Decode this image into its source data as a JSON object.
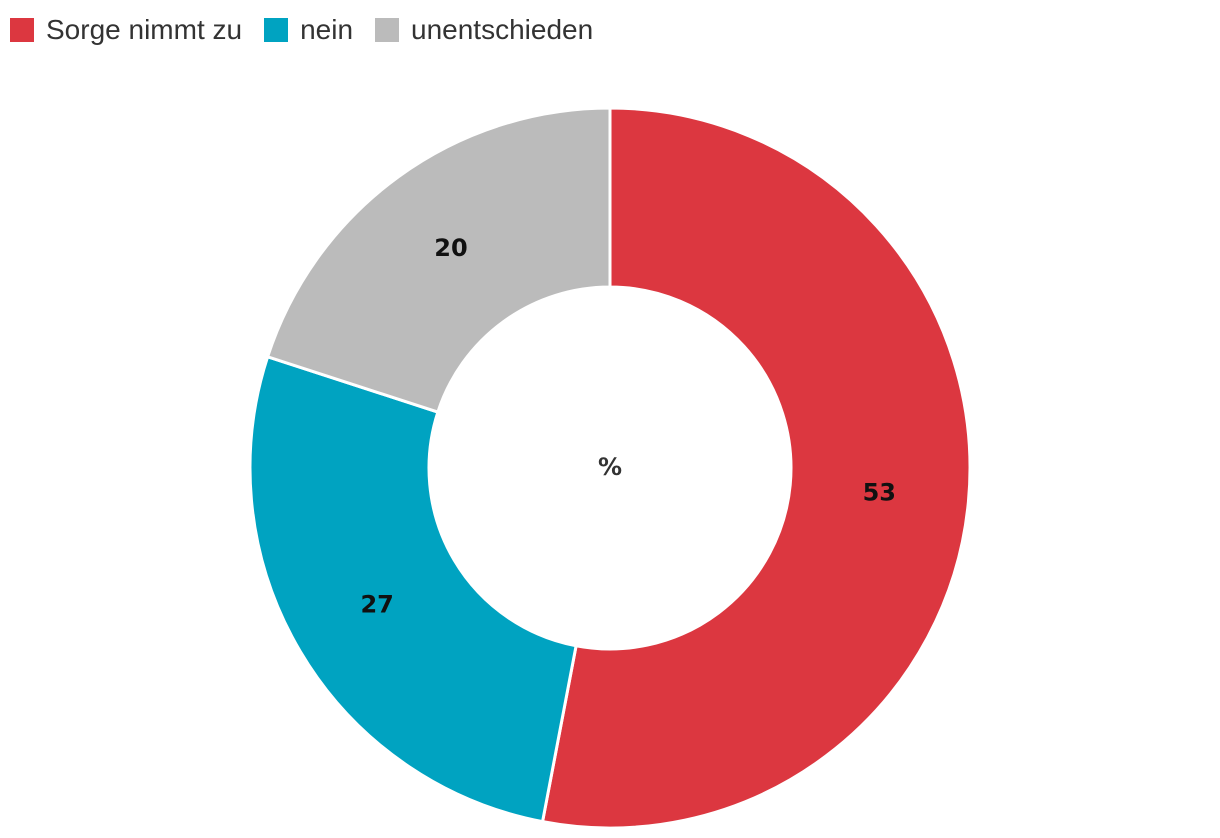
{
  "chart_data": {
    "type": "pie",
    "variant": "donut",
    "categories": [
      "Sorge nimmt zu",
      "nein",
      "unentschieden"
    ],
    "values": [
      53,
      27,
      20
    ],
    "colors": [
      "#dc3740",
      "#00a3c1",
      "#bbbbbb"
    ],
    "center_label": "%",
    "legend_position": "top-left",
    "start_angle": "12 o'clock",
    "direction": "clockwise"
  }
}
